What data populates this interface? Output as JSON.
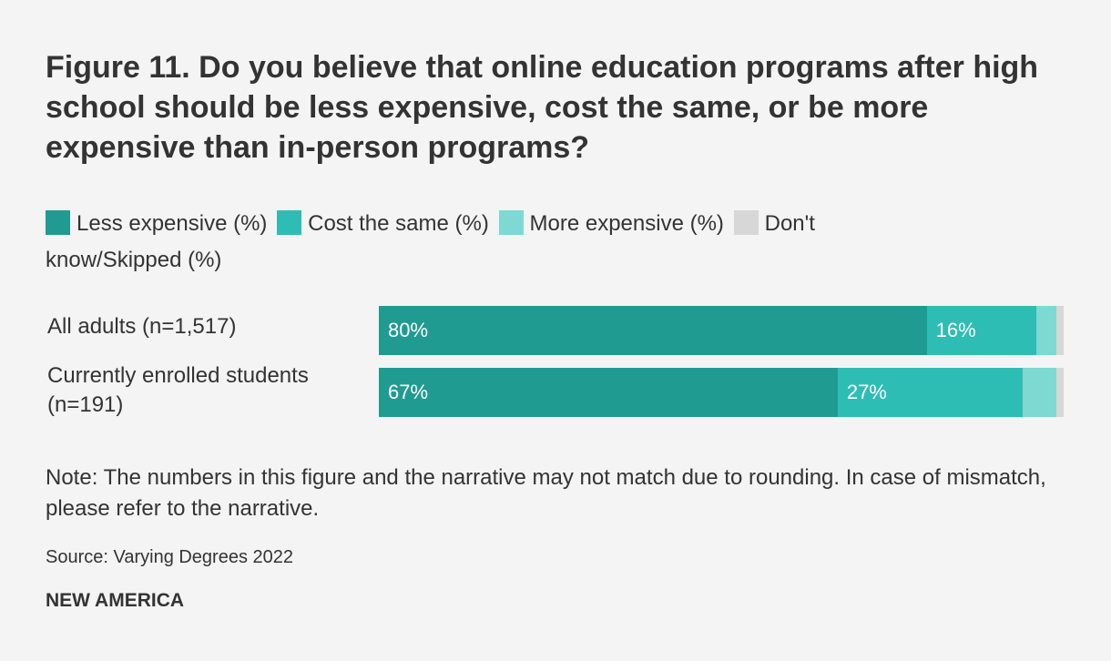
{
  "title": "Figure 11. Do you believe that online education programs after high school should be less expensive, cost the same, or be more expensive than in-person programs?",
  "note": "Note: The numbers in this figure and the narrative may not match due to rounding. In case of mismatch, please refer to the narrative.",
  "source": "Source: Varying Degrees 2022",
  "brand": "NEW AMERICA",
  "chart_data": {
    "type": "bar",
    "orientation": "horizontal-stacked",
    "xlim": [
      0,
      100
    ],
    "categories": [
      "All adults (n=1,517)",
      "Currently enrolled students (n=191)"
    ],
    "series": [
      {
        "name": "Less expensive (%)",
        "color": "#1f9b91",
        "values": [
          80,
          67
        ],
        "labels": [
          "80%",
          "67%"
        ]
      },
      {
        "name": "Cost the same (%)",
        "color": "#2ebdb4",
        "values": [
          16,
          27
        ],
        "labels": [
          "16%",
          "27%"
        ]
      },
      {
        "name": "More expensive (%)",
        "color": "#7dd9d2",
        "values": [
          3,
          5
        ],
        "labels": [
          "",
          ""
        ]
      },
      {
        "name": "Don't know/Skipped (%)",
        "color": "#d7d7d7",
        "values": [
          1,
          1
        ],
        "labels": [
          "",
          ""
        ]
      }
    ]
  }
}
